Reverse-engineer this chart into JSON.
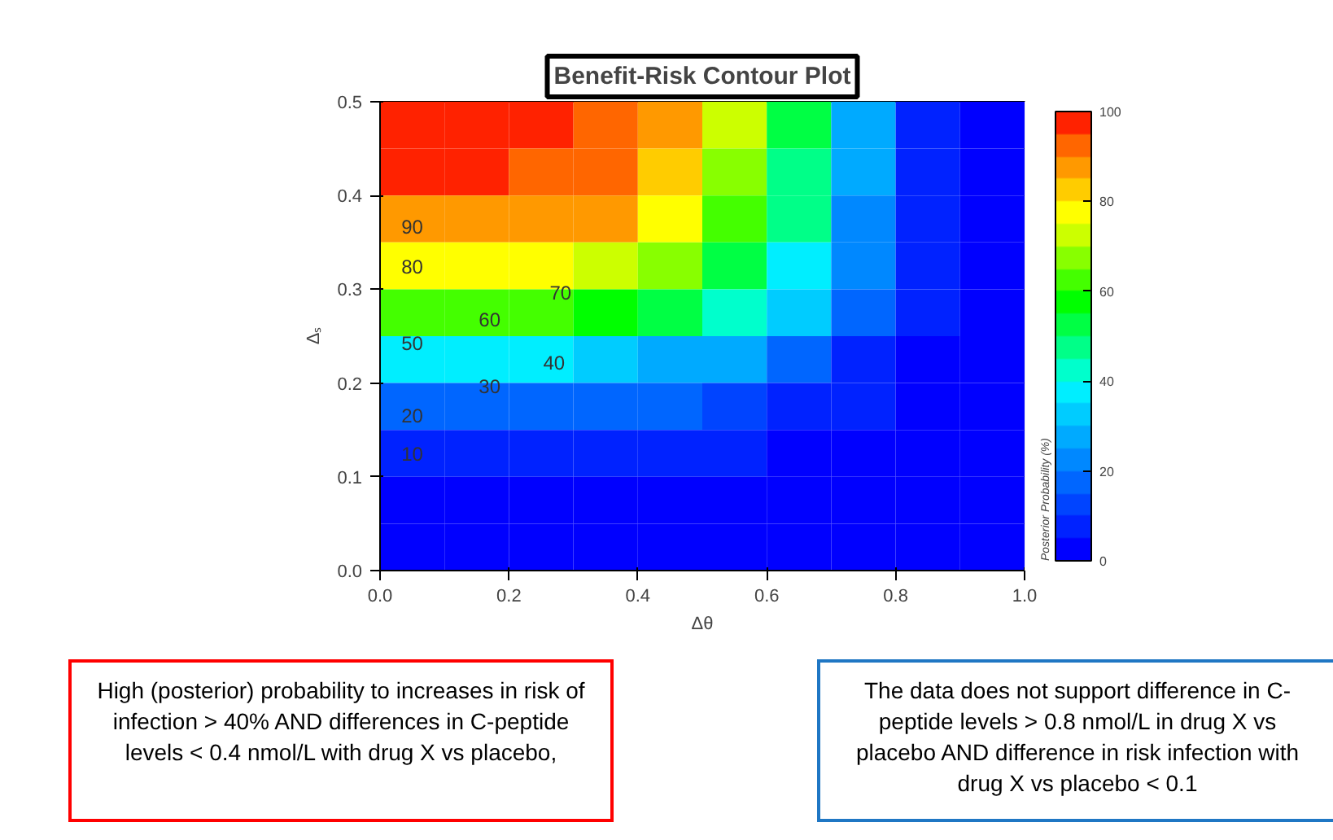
{
  "chart_data": {
    "type": "heatmap",
    "title": "Benefit-Risk Contour Plot",
    "xlabel": "Δθ",
    "ylabel": "Δₛ",
    "clabel": "Posterior Probability (%)",
    "x": [
      0.05,
      0.15,
      0.25,
      0.35,
      0.45,
      0.55,
      0.65,
      0.75,
      0.85,
      0.95
    ],
    "y": [
      0.475,
      0.425,
      0.375,
      0.325,
      0.275,
      0.225,
      0.175,
      0.125,
      0.075,
      0.025
    ],
    "xlim": [
      0,
      1
    ],
    "xticks": [
      {
        "value": 0,
        "label": "0.0"
      },
      0.2,
      0.4,
      0.6,
      0.8,
      {
        "value": 1,
        "label": "1.0"
      }
    ],
    "ylim": [
      0,
      0.5
    ],
    "yticks": [
      {
        "value": 0,
        "label": "0.0"
      },
      0.1,
      0.2,
      0.3,
      0.4,
      0.5
    ],
    "clim": [
      0,
      100
    ],
    "cticks": [
      0,
      20,
      40,
      60,
      80,
      100
    ],
    "colors": [
      "#0000ff",
      "#0022ff",
      "#0044ff",
      "#0066ff",
      "#0088ff",
      "#00aaff",
      "#00ccff",
      "#00eeff",
      "#00ffcc",
      "#00ff88",
      "#00ff44",
      "#00ff00",
      "#44ff00",
      "#88ff00",
      "#ccff00",
      "#ffff00",
      "#ffcc00",
      "#ff9900",
      "#ff6600",
      "#ff2200"
    ],
    "cells": [
      [
        98,
        98,
        97,
        94,
        85,
        70,
        50,
        25,
        8,
        2
      ],
      [
        95,
        95,
        94,
        91,
        83,
        67,
        48,
        25,
        8,
        2
      ],
      [
        89,
        89,
        88,
        85,
        77,
        63,
        45,
        23,
        7,
        2
      ],
      [
        76,
        76,
        75,
        73,
        66,
        54,
        39,
        20,
        6,
        2
      ],
      [
        62,
        62,
        61,
        60,
        54,
        44,
        32,
        16,
        5,
        1
      ],
      [
        35,
        35,
        35,
        34,
        30,
        25,
        18,
        9,
        3,
        1
      ],
      [
        18,
        18,
        18,
        17,
        16,
        13,
        9,
        5,
        1,
        0
      ],
      [
        8,
        8,
        8,
        8,
        7,
        6,
        4,
        2,
        1,
        0
      ],
      [
        3,
        3,
        3,
        3,
        3,
        2,
        2,
        1,
        0,
        0
      ],
      [
        1,
        1,
        1,
        1,
        1,
        1,
        1,
        0,
        0,
        0
      ]
    ],
    "annotations": [
      "90",
      "80",
      "70",
      "60",
      "50",
      "40",
      "30",
      "20",
      "10",
      "High (posterior) probability to increases in risk of infection > 40% AND differences in C-peptide levels < 0.4 nmol/L with drug X vs placebo,",
      "The data does not support difference in C-peptide levels > 0.8 nmol/L in drug X vs placebo AND difference in risk infection with drug X vs placebo < 0.1"
    ]
  }
}
